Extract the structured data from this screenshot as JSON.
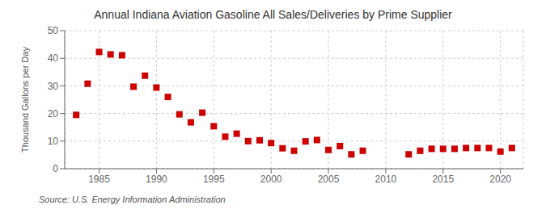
{
  "chart_data": {
    "type": "scatter",
    "title": "Annual Indiana Aviation Gasoline All Sales/Deliveries by Prime Supplier",
    "ylabel": "Thousand Gallons per Day",
    "annotations": [
      "Source: U.S. Energy Information Administration"
    ],
    "x": [
      1983,
      1984,
      1985,
      1986,
      1987,
      1988,
      1989,
      1990,
      1991,
      1992,
      1993,
      1994,
      1995,
      1996,
      1997,
      1998,
      1999,
      2000,
      2001,
      2002,
      2003,
      2004,
      2005,
      2006,
      2007,
      2008,
      2012,
      2013,
      2014,
      2015,
      2016,
      2017,
      2018,
      2019,
      2020,
      2021
    ],
    "values": [
      19.5,
      30.8,
      42.3,
      41.4,
      41.1,
      29.7,
      33.7,
      29.4,
      26.0,
      19.7,
      16.8,
      20.3,
      15.4,
      11.6,
      12.7,
      10.0,
      10.3,
      9.3,
      7.4,
      6.5,
      9.9,
      10.4,
      6.8,
      8.2,
      5.2,
      6.5,
      5.2,
      6.5,
      7.2,
      7.2,
      7.2,
      7.5,
      7.5,
      7.5,
      6.2,
      7.5
    ],
    "color": "#cc0000",
    "marker": "square",
    "grid": true,
    "xlim": [
      1982,
      2022
    ],
    "xticks": [
      1985,
      1990,
      1995,
      2000,
      2005,
      2010,
      2015,
      2020
    ],
    "ylim": [
      0,
      50
    ],
    "yticks": [
      0,
      10,
      20,
      30,
      40,
      50
    ]
  }
}
